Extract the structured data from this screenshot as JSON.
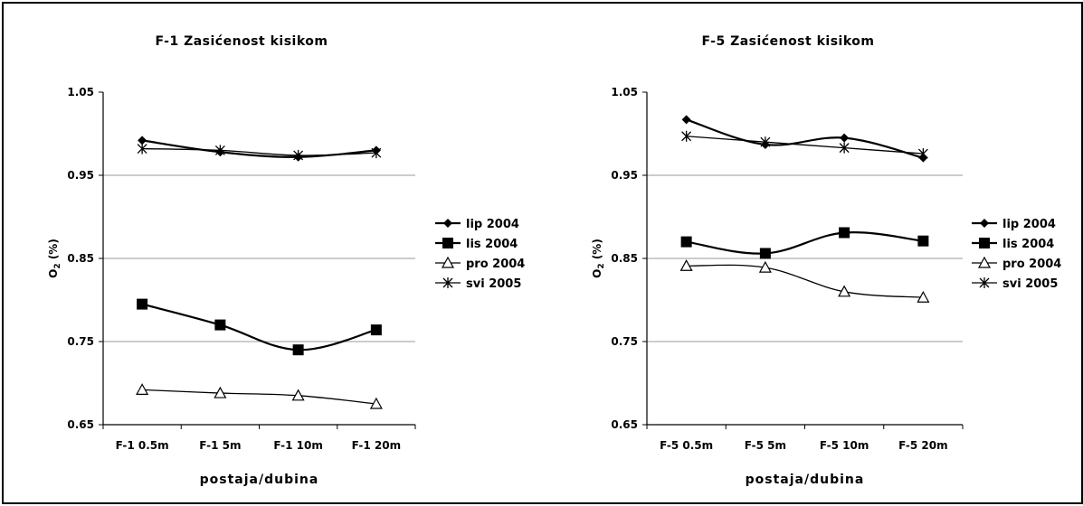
{
  "chart_data": [
    {
      "type": "line",
      "title": "F-1 Zasićenost kisikom",
      "xlabel": "postaja/dubina",
      "ylabel": "O2 (%)",
      "ylim": [
        0.65,
        1.05
      ],
      "yticks": [
        "1.05",
        "0.95",
        "0.85",
        "0.75",
        "0.65"
      ],
      "categories": [
        "F-1 0.5m",
        "F-1 5m",
        "F-1 10m",
        "F-1 20m"
      ],
      "grid": "horizontal",
      "legend_position": "right",
      "series": [
        {
          "name": "lip 2004",
          "marker": "diamond",
          "values": [
            0.992,
            0.978,
            0.972,
            0.98
          ]
        },
        {
          "name": "lis 2004",
          "marker": "square",
          "values": [
            0.795,
            0.77,
            0.74,
            0.764
          ]
        },
        {
          "name": "pro 2004",
          "marker": "triangle",
          "values": [
            0.692,
            0.688,
            0.685,
            0.675
          ]
        },
        {
          "name": "svi 2005",
          "marker": "star",
          "values": [
            0.982,
            0.98,
            0.974,
            0.977
          ]
        }
      ]
    },
    {
      "type": "line",
      "title": "F-5 Zasićenost kisikom",
      "xlabel": "postaja/dubina",
      "ylabel": "O2 (%)",
      "ylim": [
        0.65,
        1.05
      ],
      "yticks": [
        "1.05",
        "0.95",
        "0.85",
        "0.75",
        "0.65"
      ],
      "categories": [
        "F-5 0.5m",
        "F-5 5m",
        "F-5 10m",
        "F-5 20m"
      ],
      "grid": "horizontal",
      "legend_position": "right",
      "series": [
        {
          "name": "lip 2004",
          "marker": "diamond",
          "values": [
            1.017,
            0.987,
            0.995,
            0.971
          ]
        },
        {
          "name": "lis 2004",
          "marker": "square",
          "values": [
            0.87,
            0.856,
            0.881,
            0.871
          ]
        },
        {
          "name": "pro 2004",
          "marker": "triangle",
          "values": [
            0.841,
            0.839,
            0.81,
            0.803
          ]
        },
        {
          "name": "svi 2005",
          "marker": "star",
          "values": [
            0.997,
            0.99,
            0.983,
            0.976
          ]
        }
      ]
    }
  ]
}
